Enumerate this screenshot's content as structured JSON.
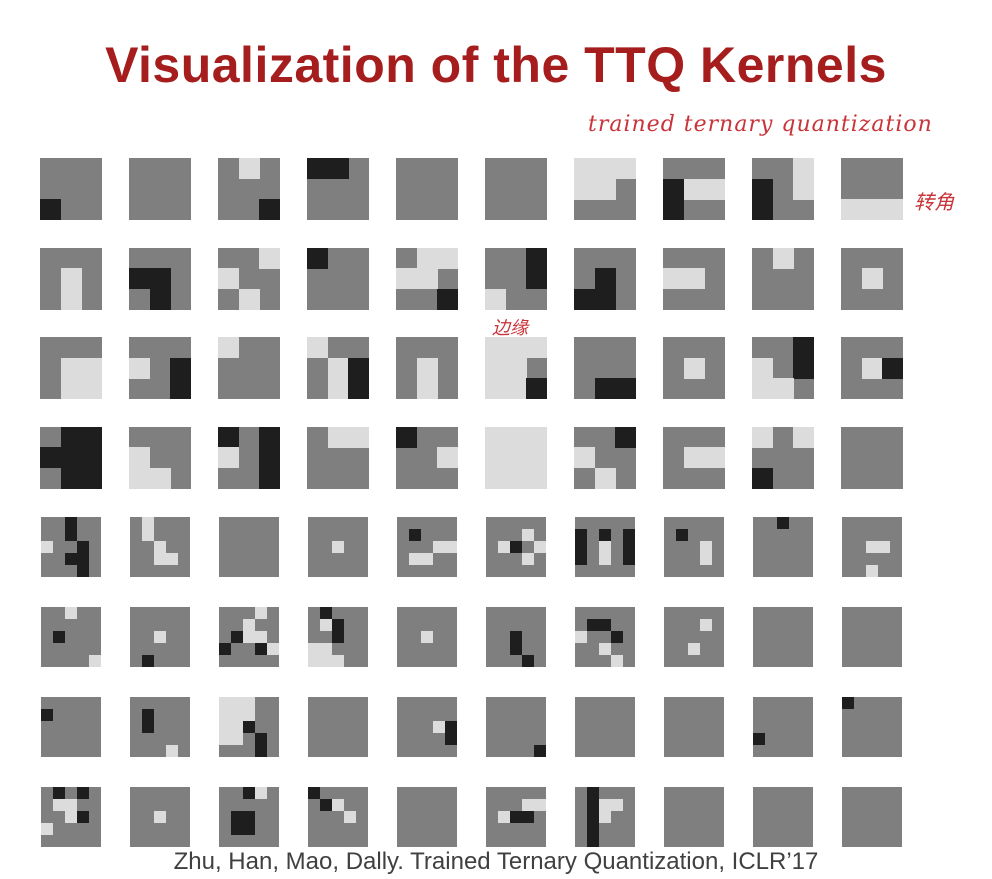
{
  "title": "Visualization of the TTQ Kernels",
  "annotations": {
    "top": "trained ternary quantization",
    "corner": "转角",
    "edge": "边缘"
  },
  "citation": "Zhu, Han, Mao, Dally. Trained Ternary Quantization, ICLR’17",
  "colors": {
    "zero": "#7f7f7f",
    "positive": "#dcdcdc",
    "negative": "#1e1e1e",
    "title": "#a51d1d",
    "annotation": "#c8343a"
  },
  "kernel_blocks": [
    {
      "size": 3,
      "kernels": [
        [
          "000",
          "000",
          "200"
        ],
        [
          "000",
          "000",
          "000"
        ],
        [
          "010",
          "000",
          "002"
        ],
        [
          "220",
          "000",
          "000"
        ],
        [
          "000",
          "000",
          "000"
        ],
        [
          "000",
          "000",
          "000"
        ],
        [
          "111",
          "110",
          "000"
        ],
        [
          "000",
          "211",
          "200"
        ],
        [
          "001",
          "201",
          "200"
        ],
        [
          "000",
          "000",
          "111"
        ],
        [
          "000",
          "010",
          "010"
        ],
        [
          "000",
          "220",
          "020"
        ],
        [
          "001",
          "100",
          "010"
        ],
        [
          "200",
          "000",
          "000"
        ],
        [
          "011",
          "110",
          "002"
        ],
        [
          "002",
          "002",
          "100"
        ],
        [
          "000",
          "020",
          "220"
        ],
        [
          "000",
          "110",
          "000"
        ],
        [
          "010",
          "000",
          "000"
        ],
        [
          "000",
          "010",
          "000"
        ],
        [
          "000",
          "011",
          "011"
        ],
        [
          "000",
          "102",
          "002"
        ],
        [
          "100",
          "000",
          "000"
        ],
        [
          "100",
          "012",
          "012"
        ],
        [
          "000",
          "010",
          "010"
        ],
        [
          "111",
          "110",
          "112"
        ],
        [
          "000",
          "000",
          "022"
        ],
        [
          "000",
          "010",
          "000"
        ],
        [
          "002",
          "102",
          "110"
        ],
        [
          "000",
          "012",
          "000"
        ],
        [
          "022",
          "222",
          "022"
        ],
        [
          "000",
          "100",
          "110"
        ],
        [
          "202",
          "102",
          "002"
        ],
        [
          "011",
          "000",
          "000"
        ],
        [
          "200",
          "001",
          "000"
        ],
        [
          "111",
          "111",
          "111"
        ],
        [
          "002",
          "100",
          "010"
        ],
        [
          "000",
          "011",
          "000"
        ],
        [
          "101",
          "000",
          "200"
        ],
        [
          "000",
          "000",
          "000"
        ]
      ]
    },
    {
      "size": 5,
      "kernels": [
        [
          "00200",
          "00200",
          "10020",
          "00220",
          "00020"
        ],
        [
          "01000",
          "01000",
          "00100",
          "00110",
          "00000"
        ],
        [
          "00000",
          "00000",
          "00000",
          "00000",
          "00000"
        ],
        [
          "00000",
          "00000",
          "00100",
          "00000",
          "00000"
        ],
        [
          "00000",
          "02000",
          "00011",
          "01100",
          "00000"
        ],
        [
          "00000",
          "00010",
          "01201",
          "00010",
          "00000"
        ],
        [
          "00000",
          "20202",
          "20102",
          "20102",
          "00000"
        ],
        [
          "00000",
          "02000",
          "00010",
          "00010",
          "00000"
        ],
        [
          "00200",
          "00000",
          "00000",
          "00000",
          "00000"
        ],
        [
          "00000",
          "00000",
          "00110",
          "00000",
          "00100"
        ],
        [
          "00100",
          "00000",
          "02000",
          "00000",
          "00001"
        ],
        [
          "00000",
          "00000",
          "00100",
          "00000",
          "02000"
        ],
        [
          "00010",
          "00100",
          "02110",
          "20021",
          "00000"
        ],
        [
          "02000",
          "01200",
          "00200",
          "11000",
          "11100"
        ],
        [
          "00000",
          "00000",
          "00100",
          "00000",
          "00000"
        ],
        [
          "00000",
          "00000",
          "00200",
          "00200",
          "00020"
        ],
        [
          "00000",
          "02200",
          "10020",
          "00100",
          "00010"
        ],
        [
          "00000",
          "00010",
          "00000",
          "00100",
          "00000"
        ],
        [
          "00000",
          "00000",
          "00000",
          "00000",
          "00000"
        ],
        [
          "00000",
          "00000",
          "00000",
          "00000",
          "00000"
        ],
        [
          "00000",
          "20000",
          "00000",
          "00000",
          "00000"
        ],
        [
          "00000",
          "02000",
          "02000",
          "00000",
          "00010"
        ],
        [
          "11100",
          "11100",
          "11200",
          "11020",
          "00020"
        ],
        [
          "00000",
          "00000",
          "00000",
          "00000",
          "00000"
        ],
        [
          "00000",
          "00000",
          "00012",
          "00002",
          "00000"
        ],
        [
          "00000",
          "00000",
          "00000",
          "00000",
          "00002"
        ],
        [
          "00000",
          "00000",
          "00000",
          "00000",
          "00000"
        ],
        [
          "00000",
          "00000",
          "00000",
          "00000",
          "00000"
        ],
        [
          "00000",
          "00000",
          "00000",
          "20000",
          "00000"
        ],
        [
          "20000",
          "00000",
          "00000",
          "00000",
          "00000"
        ],
        [
          "02020",
          "01100",
          "00120",
          "10000",
          "00000"
        ],
        [
          "00000",
          "00000",
          "00100",
          "00000",
          "00000"
        ],
        [
          "00210",
          "00000",
          "02200",
          "02200",
          "00000"
        ],
        [
          "20000",
          "02100",
          "00010",
          "00000",
          "00000"
        ],
        [
          "00000",
          "00000",
          "00000",
          "00000",
          "00000"
        ],
        [
          "00000",
          "00011",
          "01220",
          "00000",
          "00000"
        ],
        [
          "02000",
          "02110",
          "02100",
          "02000",
          "02000"
        ],
        [
          "00000",
          "00000",
          "00000",
          "00000",
          "00000"
        ],
        [
          "00000",
          "00000",
          "00000",
          "00000",
          "00000"
        ],
        [
          "00000",
          "00000",
          "00000",
          "00000",
          "00000"
        ]
      ]
    }
  ]
}
